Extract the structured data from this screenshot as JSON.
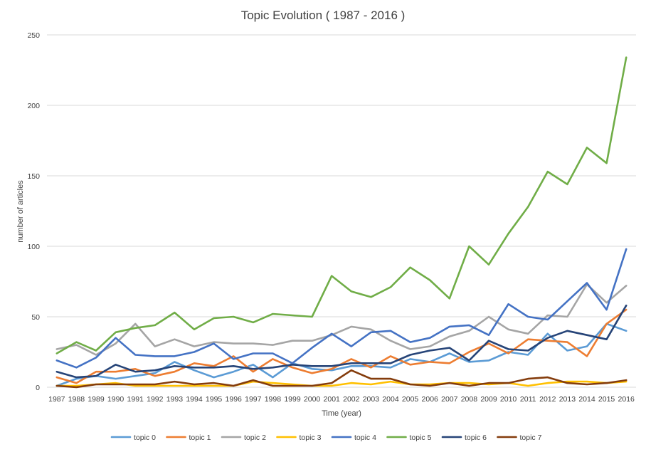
{
  "chart_data": {
    "type": "line",
    "title": "Topic Evolution ( 1987 - 2016 )",
    "xlabel": "Time (year)",
    "ylabel": "number of articles",
    "ylim": [
      0,
      250
    ],
    "yticks": [
      0,
      50,
      100,
      150,
      200,
      250
    ],
    "grid": true,
    "legend": "bottom",
    "categories": [
      "1987",
      "1988",
      "1989",
      "1990",
      "1991",
      "1992",
      "1993",
      "1994",
      "1995",
      "1996",
      "1997",
      "1998",
      "1999",
      "2000",
      "2001",
      "2002",
      "2003",
      "2004",
      "2005",
      "2006",
      "2007",
      "2008",
      "2009",
      "2010",
      "2011",
      "2012",
      "2013",
      "2014",
      "2015",
      "2016"
    ],
    "series": [
      {
        "name": "topic 0",
        "color": "#5b9bd5",
        "values": [
          1,
          6,
          8,
          6,
          8,
          10,
          18,
          12,
          7,
          11,
          16,
          7,
          17,
          13,
          12,
          15,
          15,
          14,
          20,
          18,
          24,
          18,
          19,
          25,
          23,
          38,
          26,
          29,
          45,
          40
        ]
      },
      {
        "name": "topic 1",
        "color": "#ed7d31",
        "values": [
          7,
          3,
          11,
          11,
          13,
          8,
          11,
          17,
          15,
          22,
          11,
          20,
          14,
          10,
          13,
          20,
          14,
          22,
          16,
          18,
          17,
          25,
          31,
          24,
          34,
          33,
          32,
          22,
          45,
          55
        ]
      },
      {
        "name": "topic 2",
        "color": "#a5a5a5",
        "values": [
          27,
          30,
          23,
          31,
          45,
          29,
          34,
          29,
          32,
          31,
          31,
          30,
          33,
          33,
          37,
          43,
          41,
          33,
          27,
          29,
          36,
          40,
          50,
          41,
          38,
          51,
          50,
          73,
          60,
          72
        ]
      },
      {
        "name": "topic 3",
        "color": "#ffc000",
        "values": [
          1,
          1,
          2,
          3,
          1,
          1,
          1,
          1,
          1,
          1,
          4,
          3,
          2,
          1,
          1,
          3,
          2,
          4,
          2,
          2,
          3,
          3,
          2,
          3,
          1,
          3,
          4,
          4,
          3,
          4
        ]
      },
      {
        "name": "topic 4",
        "color": "#4472c4",
        "values": [
          19,
          14,
          21,
          35,
          23,
          22,
          22,
          25,
          31,
          20,
          24,
          24,
          17,
          28,
          38,
          29,
          39,
          40,
          32,
          35,
          43,
          44,
          37,
          59,
          50,
          48,
          61,
          74,
          55,
          98
        ]
      },
      {
        "name": "topic 5",
        "color": "#70ad47",
        "values": [
          24,
          32,
          26,
          39,
          42,
          44,
          53,
          41,
          49,
          50,
          46,
          52,
          51,
          50,
          79,
          68,
          64,
          71,
          85,
          76,
          63,
          100,
          87,
          109,
          128,
          153,
          144,
          170,
          159,
          234
        ]
      },
      {
        "name": "topic 6",
        "color": "#264478",
        "values": [
          11,
          7,
          8,
          16,
          11,
          12,
          15,
          14,
          14,
          15,
          13,
          14,
          16,
          15,
          15,
          17,
          17,
          17,
          23,
          26,
          28,
          19,
          33,
          27,
          26,
          35,
          40,
          37,
          34,
          58
        ]
      },
      {
        "name": "topic 7",
        "color": "#843c0c",
        "values": [
          1,
          0,
          2,
          2,
          2,
          2,
          4,
          2,
          3,
          1,
          5,
          1,
          1,
          1,
          3,
          12,
          6,
          6,
          2,
          1,
          3,
          1,
          3,
          3,
          6,
          7,
          3,
          2,
          3,
          5
        ]
      }
    ]
  }
}
